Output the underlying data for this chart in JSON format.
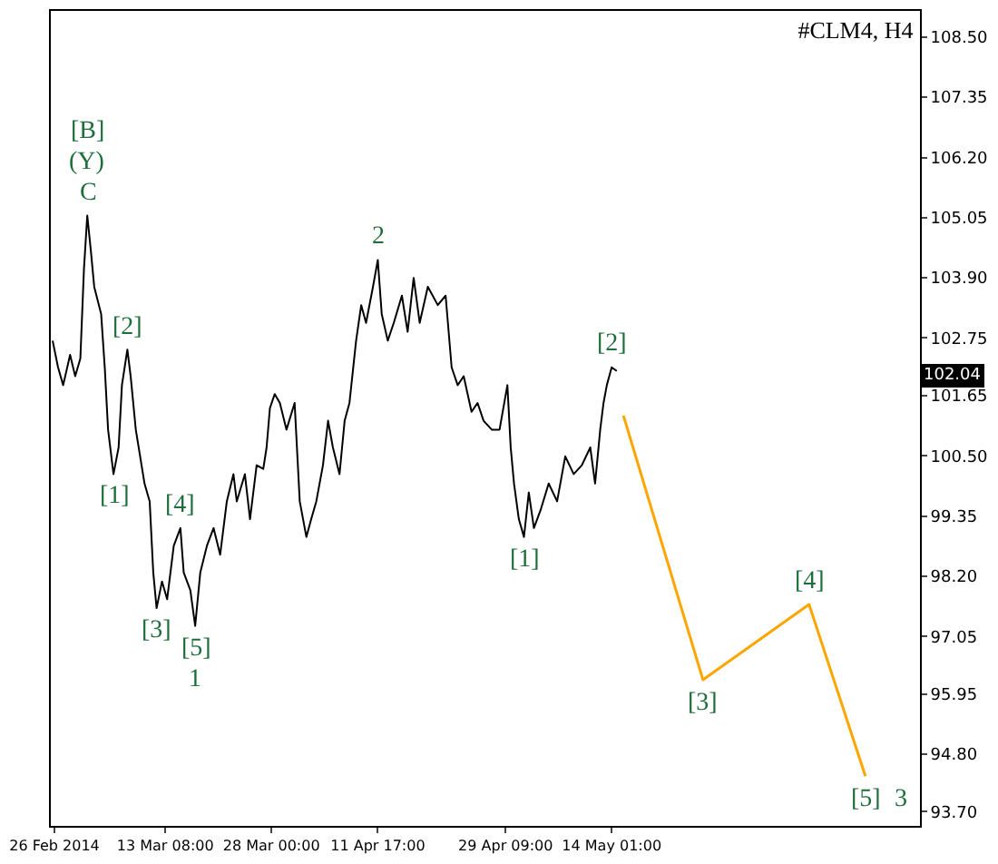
{
  "chart_data": {
    "type": "line",
    "title": "#CLM4, H4",
    "series": [
      {
        "color": "#000000",
        "x": [
          "2014-02-25T18:00",
          "2014-02-26T12:00",
          "2014-02-27T05:00",
          "2014-02-28T04:00",
          "2014-02-28T21:00",
          "2014-03-01T14:00",
          "2014-03-02T02:00",
          "2014-03-02T13:00",
          "2014-03-03T01:00",
          "2014-03-03T12:00",
          "2014-03-04T11:00",
          "2014-03-04T23:00",
          "2014-03-05T10:00",
          "2014-03-06T04:00",
          "2014-03-06T21:00",
          "2014-03-07T08:00",
          "2014-03-08T02:00",
          "2014-03-08T13:00",
          "2014-03-09T06:00",
          "2014-03-10T11:00",
          "2014-03-11T04:00",
          "2014-03-11T16:00",
          "2014-03-12T03:00",
          "2014-03-12T21:00",
          "2014-03-13T14:00",
          "2014-03-14T12:00",
          "2014-03-15T10:00",
          "2014-03-15T21:00",
          "2014-03-16T19:00",
          "2014-03-17T11:00",
          "2014-03-18T04:00",
          "2014-03-19T02:00",
          "2014-03-20T00:00",
          "2014-03-20T22:00",
          "2014-03-21T20:00",
          "2014-03-22T18:00",
          "2014-03-23T05:00",
          "2014-03-24T08:00",
          "2014-03-25T01:00",
          "2014-03-25T23:00",
          "2014-03-26T21:00",
          "2014-03-27T08:00",
          "2014-03-27T19:00",
          "2014-03-28T11:00",
          "2014-03-29T04:00",
          "2014-03-30T02:00",
          "2014-03-31T05:00",
          "2014-03-31T22:00",
          "2014-04-01T20:00",
          "2014-04-02T12:00",
          "2014-04-03T05:00",
          "2014-04-04T03:00",
          "2014-04-04T20:00",
          "2014-04-05T12:00",
          "2014-04-06T10:00",
          "2014-04-07T03:00",
          "2014-04-07T19:00",
          "2014-04-08T17:00",
          "2014-04-09T10:00",
          "2014-04-10T02:00",
          "2014-04-11T01:00",
          "2014-04-11T17:00",
          "2014-04-12T06:00",
          "2014-04-13T02:00",
          "2014-04-13T22:00",
          "2014-04-15T01:00",
          "2014-04-15T20:00",
          "2014-04-16T16:00",
          "2014-04-17T12:00",
          "2014-04-18T15:00",
          "2014-04-20T00:00",
          "2014-04-21T02:00",
          "2014-04-21T22:00",
          "2014-04-22T18:00",
          "2014-04-23T14:00",
          "2014-04-24T16:00",
          "2014-04-25T12:00",
          "2014-04-26T08:00",
          "2014-04-27T11:00",
          "2014-04-28T13:00",
          "2014-04-29T15:00",
          "2014-04-30T02:00",
          "2014-04-30T13:00",
          "2014-05-01T05:00",
          "2014-05-01T22:00",
          "2014-05-02T14:00",
          "2014-05-03T07:00",
          "2014-05-04T05:00",
          "2014-05-05T08:00",
          "2014-05-06T12:00",
          "2014-05-07T15:00",
          "2014-05-08T19:00",
          "2014-05-09T22:00",
          "2014-05-11T02:00",
          "2014-05-11T18:00",
          "2014-05-12T11:00",
          "2014-05-12T22:00",
          "2014-05-13T09:00",
          "2014-05-14T01:00",
          "2014-05-14T18:00"
        ],
        "values": [
          102.7,
          102.19,
          101.85,
          102.43,
          102.02,
          102.36,
          104.07,
          105.09,
          104.41,
          103.73,
          103.21,
          102.19,
          101.0,
          100.15,
          100.66,
          101.85,
          102.53,
          102.02,
          101.0,
          99.97,
          99.63,
          98.27,
          97.59,
          98.1,
          97.76,
          98.78,
          99.12,
          98.27,
          97.93,
          97.25,
          98.27,
          98.78,
          99.12,
          98.61,
          99.63,
          100.15,
          99.63,
          100.15,
          99.29,
          100.32,
          100.25,
          100.66,
          101.41,
          101.68,
          101.51,
          101.0,
          101.51,
          99.63,
          98.95,
          99.29,
          99.63,
          100.32,
          101.17,
          100.66,
          100.15,
          101.17,
          101.51,
          102.7,
          103.38,
          103.04,
          103.73,
          104.24,
          103.21,
          102.7,
          103.04,
          103.56,
          102.87,
          103.9,
          103.04,
          103.73,
          103.38,
          103.56,
          102.19,
          101.85,
          102.02,
          101.34,
          101.51,
          101.17,
          101.0,
          101.0,
          101.85,
          100.66,
          99.97,
          99.29,
          98.95,
          99.8,
          99.12,
          99.46,
          99.97,
          99.63,
          100.49,
          100.15,
          100.32,
          100.66,
          99.97,
          101.0,
          101.51,
          101.85,
          102.19,
          102.12
        ]
      },
      {
        "color": "#ffa500",
        "x": [
          "2014-05-15T16:00",
          "2014-05-26T16:00",
          "2014-06-10T08:00",
          "2014-06-18T03:00"
        ],
        "values": [
          101.27,
          96.22,
          97.66,
          94.38
        ]
      }
    ],
    "xlim": [
      "2014-02-25T12:00",
      "2014-06-25T16:00"
    ],
    "xticks": [
      {
        "value": "2014-02-26T00:00",
        "label": "26 Feb 2014"
      },
      {
        "value": "2014-03-13T08:00",
        "label": "13 Mar 08:00"
      },
      {
        "value": "2014-03-28T00:00",
        "label": "28 Mar 00:00"
      },
      {
        "value": "2014-04-11T17:00",
        "label": "11 Apr 17:00"
      },
      {
        "value": "2014-04-29T09:00",
        "label": "29 Apr 09:00"
      },
      {
        "value": "2014-05-14T01:00",
        "label": "14 May 01:00"
      }
    ],
    "ylim": [
      93.43,
      109.0
    ],
    "yticks": [
      {
        "value": 93.7,
        "label": "93.70"
      },
      {
        "value": 94.8,
        "label": "94.80"
      },
      {
        "value": 95.95,
        "label": "95.95"
      },
      {
        "value": 97.05,
        "label": "97.05"
      },
      {
        "value": 98.2,
        "label": "98.20"
      },
      {
        "value": 99.35,
        "label": "99.35"
      },
      {
        "value": 100.5,
        "label": "100.50"
      },
      {
        "value": 101.65,
        "label": "101.65"
      },
      {
        "value": 102.75,
        "label": "102.75"
      },
      {
        "value": 103.9,
        "label": "103.90"
      },
      {
        "value": 105.05,
        "label": "105.05"
      },
      {
        "value": 106.2,
        "label": "106.20"
      },
      {
        "value": 107.35,
        "label": "107.35"
      },
      {
        "value": 108.5,
        "label": "108.50"
      }
    ],
    "marker": "none",
    "line_style": "solid",
    "annotations": [
      {
        "text": "C",
        "x": "2014-03-02T13:00",
        "y": 105.09
      },
      {
        "text": "(Y)",
        "x": "2014-03-02T13:00",
        "y": 105.09
      },
      {
        "text": "[B]",
        "x": "2014-03-02T13:00",
        "y": 105.09
      },
      {
        "text": "[2]",
        "x": "2014-03-08T02:00",
        "y": 102.53
      },
      {
        "text": "[1]",
        "x": "2014-03-06T04:00",
        "y": 100.15
      },
      {
        "text": "[4]",
        "x": "2014-03-15T10:00",
        "y": 99.12
      },
      {
        "text": "[3]",
        "x": "2014-03-12T03:00",
        "y": 97.59
      },
      {
        "text": "[5]",
        "x": "2014-03-17T11:00",
        "y": 97.25
      },
      {
        "text": "1",
        "x": "2014-03-17T11:00",
        "y": 97.25
      },
      {
        "text": "2",
        "x": "2014-04-11T17:00",
        "y": 104.24
      },
      {
        "text": "[1]",
        "x": "2014-05-01T22:00",
        "y": 98.95
      },
      {
        "text": "[2]",
        "x": "2014-05-14T01:00",
        "y": 102.19
      },
      {
        "text": "[3]",
        "x": "2014-05-26T16:00",
        "y": 96.22
      },
      {
        "text": "[4]",
        "x": "2014-06-10T08:00",
        "y": 97.66
      },
      {
        "text": "[5]",
        "x": "2014-06-18T03:00",
        "y": 94.38
      },
      {
        "text": "3",
        "x": "2014-06-18T03:00",
        "y": 94.38
      },
      {
        "text": "102.04",
        "y": 102.04
      }
    ]
  }
}
